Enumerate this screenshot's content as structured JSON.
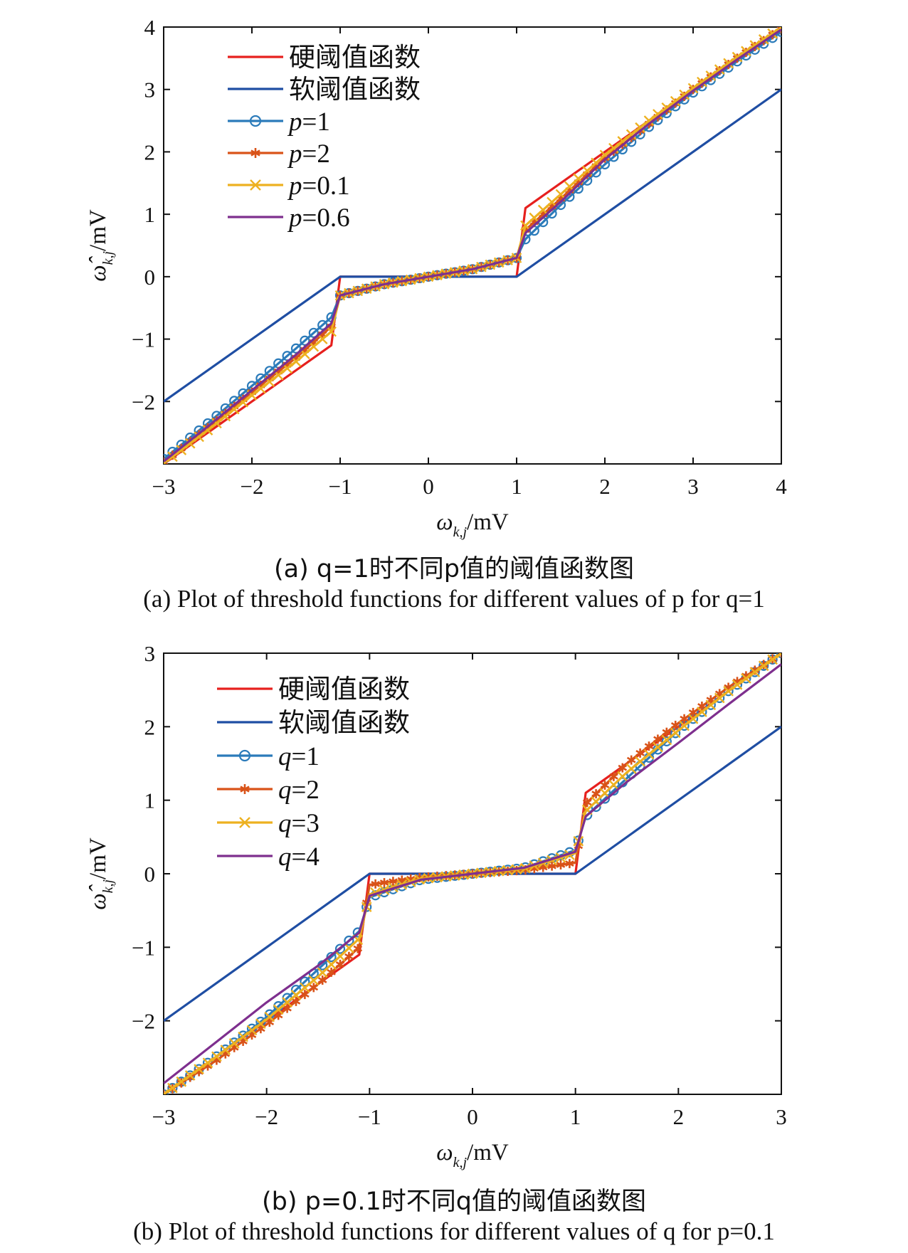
{
  "chart_data": [
    {
      "type": "line",
      "id": "a",
      "xlabel": "ω_{k,j}/mV",
      "ylabel": "ω̂_{k,j}/mV",
      "xlim": [
        -3,
        4
      ],
      "ylim": [
        -3,
        4
      ],
      "xticks": [
        -3,
        -2,
        -1,
        0,
        1,
        2,
        3,
        4
      ],
      "yticks": [
        -2,
        -1,
        0,
        1,
        2,
        3,
        4
      ],
      "grid": false,
      "legend_position": "top-left",
      "caption_cn": "(a) q=1时不同p值的阈值函数图",
      "caption_en": "(a) Plot of threshold functions for different values of p for q=1",
      "series": [
        {
          "name": "硬阈值函数",
          "color": "#e6201e",
          "marker": "none",
          "x": [
            -3,
            -1.1,
            -1.1,
            -1,
            -1,
            1,
            1,
            1.1,
            1.1,
            4
          ],
          "y": [
            -3,
            -1.1,
            -1.1,
            0.0,
            0.0,
            0.0,
            0.0,
            1.1,
            1.1,
            4
          ]
        },
        {
          "name": "软阈值函数",
          "color": "#1f4ea3",
          "marker": "none",
          "x": [
            -3,
            -1,
            1,
            4
          ],
          "y": [
            -2,
            0,
            0,
            3
          ]
        },
        {
          "name": "p=1",
          "color": "#2b7bba",
          "marker": "circle",
          "x": [
            -3,
            -2.5,
            -2,
            -1.5,
            -1.1,
            -1,
            -0.5,
            0,
            0.5,
            1,
            1.1,
            1.5,
            2,
            2.5,
            3,
            3.5,
            4
          ],
          "y": [
            -2.92,
            -2.35,
            -1.75,
            -1.15,
            -0.65,
            -0.3,
            -0.12,
            0.0,
            0.12,
            0.3,
            0.6,
            1.15,
            1.8,
            2.4,
            2.95,
            3.45,
            3.92
          ]
        },
        {
          "name": "p=2",
          "color": "#d95319",
          "marker": "asterisk",
          "x": [
            -3,
            -2.5,
            -2,
            -1.5,
            -1.1,
            -1,
            -0.5,
            0,
            0.5,
            1,
            1.1,
            1.5,
            2,
            2.5,
            3,
            3.5,
            4
          ],
          "y": [
            -2.97,
            -2.42,
            -1.85,
            -1.3,
            -0.8,
            -0.3,
            -0.12,
            0.0,
            0.12,
            0.3,
            0.75,
            1.25,
            1.9,
            2.45,
            3.0,
            3.5,
            3.97
          ]
        },
        {
          "name": "p=0.1",
          "color": "#edb120",
          "marker": "x",
          "x": [
            -3,
            -2.5,
            -2,
            -1.5,
            -1.1,
            -1,
            -0.5,
            0,
            0.5,
            1,
            1.1,
            1.5,
            2,
            2.5,
            3,
            3.5,
            4
          ],
          "y": [
            -2.99,
            -2.46,
            -1.9,
            -1.36,
            -0.88,
            -0.3,
            -0.12,
            0.0,
            0.12,
            0.3,
            0.82,
            1.32,
            1.95,
            2.5,
            3.02,
            3.52,
            3.99
          ]
        },
        {
          "name": "p=0.6",
          "color": "#7e2f8e",
          "marker": "none",
          "x": [
            -3,
            -2.5,
            -2,
            -1.5,
            -1.1,
            -1,
            -0.5,
            0,
            0.5,
            1,
            1.1,
            1.5,
            2,
            2.5,
            3,
            3.5,
            4
          ],
          "y": [
            -2.96,
            -2.4,
            -1.82,
            -1.25,
            -0.75,
            -0.3,
            -0.12,
            0.0,
            0.12,
            0.3,
            0.7,
            1.2,
            1.88,
            2.45,
            2.98,
            3.48,
            3.96
          ]
        }
      ]
    },
    {
      "type": "line",
      "id": "b",
      "xlabel": "ω_{k,j}/mV",
      "ylabel": "ω̂_{k,j}/mV",
      "xlim": [
        -3,
        3
      ],
      "ylim": [
        -3,
        3
      ],
      "xticks": [
        -3,
        -2,
        -1,
        0,
        1,
        2,
        3
      ],
      "yticks": [
        -2,
        -1,
        0,
        1,
        2,
        3
      ],
      "grid": false,
      "legend_position": "top-left",
      "caption_cn": "(b) p=0.1时不同q值的阈值函数图",
      "caption_en": "(b) Plot of threshold functions for different values of q for p=0.1",
      "series": [
        {
          "name": "硬阈值函数",
          "color": "#e6201e",
          "marker": "none",
          "x": [
            -3,
            -1.1,
            -1.1,
            -1,
            -1,
            1,
            1,
            1.1,
            1.1,
            3
          ],
          "y": [
            -3,
            -1.1,
            -1.1,
            0.0,
            0.0,
            0.0,
            0.0,
            1.1,
            1.1,
            3
          ]
        },
        {
          "name": "软阈值函数",
          "color": "#1f4ea3",
          "marker": "none",
          "x": [
            -3,
            -1,
            1,
            3
          ],
          "y": [
            -2,
            0,
            0,
            2
          ]
        },
        {
          "name": "q=1",
          "color": "#2b7bba",
          "marker": "circle",
          "x": [
            -3,
            -2.5,
            -2,
            -1.5,
            -1.1,
            -1,
            -0.5,
            0,
            0.5,
            1,
            1.1,
            1.5,
            2,
            2.5,
            3
          ],
          "y": [
            -3.0,
            -2.5,
            -1.95,
            -1.3,
            -0.78,
            -0.32,
            -0.08,
            0.0,
            0.08,
            0.32,
            0.78,
            1.3,
            1.95,
            2.5,
            3.0
          ]
        },
        {
          "name": "q=2",
          "color": "#d95319",
          "marker": "asterisk",
          "x": [
            -3,
            -2.5,
            -2,
            -1.5,
            -1.1,
            -1,
            -0.5,
            0,
            0.5,
            1,
            1.1,
            1.5,
            2,
            2.5,
            3
          ],
          "y": [
            -3.0,
            -2.55,
            -2.05,
            -1.5,
            -1.0,
            -0.15,
            -0.05,
            0.0,
            0.05,
            0.15,
            0.95,
            1.5,
            2.05,
            2.55,
            3.0
          ]
        },
        {
          "name": "q=3",
          "color": "#edb120",
          "marker": "x",
          "x": [
            -3,
            -2.5,
            -2,
            -1.5,
            -1.1,
            -1,
            -0.5,
            0,
            0.5,
            1,
            1.1,
            1.5,
            2,
            2.5,
            3
          ],
          "y": [
            -3.0,
            -2.5,
            -1.98,
            -1.4,
            -0.88,
            -0.28,
            -0.07,
            0.0,
            0.07,
            0.28,
            0.85,
            1.38,
            1.95,
            2.5,
            3.0
          ]
        },
        {
          "name": "q=4",
          "color": "#7e2f8e",
          "marker": "none",
          "x": [
            -3,
            -2.5,
            -2,
            -1.5,
            -1.1,
            -1,
            -0.5,
            0,
            0.5,
            1,
            1.1,
            1.5,
            2,
            2.5,
            3
          ],
          "y": [
            -2.85,
            -2.3,
            -1.75,
            -1.25,
            -0.8,
            -0.3,
            -0.08,
            0.0,
            0.08,
            0.3,
            0.78,
            1.25,
            1.78,
            2.32,
            2.85
          ]
        }
      ]
    }
  ]
}
